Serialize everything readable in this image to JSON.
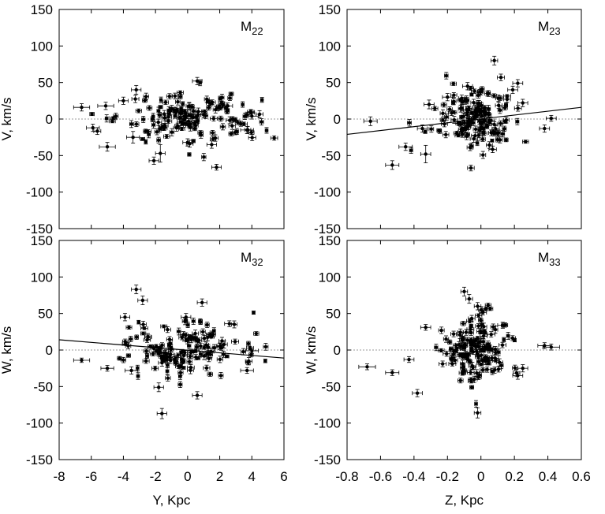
{
  "chart_data": [
    {
      "type": "scatter",
      "panel_label": "M",
      "panel_label_sub": "22",
      "xlabel": "",
      "ylabel": "V, km/s",
      "xlim": [
        -8,
        6
      ],
      "ylim": [
        -150,
        150
      ],
      "xticks": [],
      "yticks": [
        "150",
        "100",
        "50",
        "0",
        "-50",
        "-100",
        "-150"
      ],
      "zero_line": true,
      "fit_line": null,
      "featured_points": [
        {
          "x": -6.6,
          "y": 16,
          "xerr": 0.5,
          "yerr": 5
        },
        {
          "x": -5.1,
          "y": 18,
          "xerr": 0.5,
          "yerr": 5
        },
        {
          "x": -5.0,
          "y": -38,
          "xerr": 0.5,
          "yerr": 6
        },
        {
          "x": -5.9,
          "y": -12,
          "xerr": 0.4,
          "yerr": 5
        },
        {
          "x": -3.4,
          "y": -25,
          "xerr": 0.4,
          "yerr": 8
        },
        {
          "x": -3.2,
          "y": 40,
          "xerr": 0.3,
          "yerr": 6
        },
        {
          "x": -2.1,
          "y": -57,
          "xerr": 0.3,
          "yerr": 5
        },
        {
          "x": -1.7,
          "y": -47,
          "xerr": 0.3,
          "yerr": 12
        },
        {
          "x": 0.6,
          "y": 52,
          "xerr": 0.3,
          "yerr": 5
        },
        {
          "x": 1.8,
          "y": -66,
          "xerr": 0.3,
          "yerr": 4
        },
        {
          "x": 4.0,
          "y": 4,
          "xerr": 0.4,
          "yerr": 4
        },
        {
          "x": 3.7,
          "y": -15,
          "xerr": 0.4,
          "yerr": 5
        },
        {
          "x": 2.5,
          "y": 18,
          "xerr": 0.3,
          "yerr": 4
        },
        {
          "x": 1.5,
          "y": -35,
          "xerr": 0.3,
          "yerr": 5
        },
        {
          "x": 0.0,
          "y": -32,
          "xerr": 0.3,
          "yerr": 5
        },
        {
          "x": -4.0,
          "y": 25,
          "xerr": 0.3,
          "yerr": 5
        }
      ],
      "cluster": {
        "count": 150,
        "x_center": 0,
        "x_spread": 2.2,
        "y_center": 3,
        "y_spread": 18
      }
    },
    {
      "type": "scatter",
      "panel_label": "M",
      "panel_label_sub": "23",
      "xlabel": "",
      "ylabel": "V, km/s",
      "xlim": [
        -0.8,
        0.6
      ],
      "ylim": [
        -150,
        150
      ],
      "xticks": [],
      "yticks": [
        "150",
        "100",
        "50",
        "0",
        "-50",
        "-100",
        "-150"
      ],
      "zero_line": true,
      "fit_line": {
        "x": [
          -0.8,
          0.6
        ],
        "y": [
          -21,
          16
        ]
      },
      "featured_points": [
        {
          "x": -0.66,
          "y": -3,
          "xerr": 0.04,
          "yerr": 6
        },
        {
          "x": -0.53,
          "y": -63,
          "xerr": 0.04,
          "yerr": 6
        },
        {
          "x": -0.45,
          "y": -38,
          "xerr": 0.04,
          "yerr": 5
        },
        {
          "x": -0.35,
          "y": -13,
          "xerr": 0.03,
          "yerr": 5
        },
        {
          "x": -0.33,
          "y": -48,
          "xerr": 0.03,
          "yerr": 12
        },
        {
          "x": -0.31,
          "y": 20,
          "xerr": 0.03,
          "yerr": 6
        },
        {
          "x": -0.08,
          "y": 45,
          "xerr": 0.03,
          "yerr": 5
        },
        {
          "x": -0.06,
          "y": -67,
          "xerr": 0.02,
          "yerr": 4
        },
        {
          "x": 0.08,
          "y": 80,
          "xerr": 0.02,
          "yerr": 6
        },
        {
          "x": 0.22,
          "y": 49,
          "xerr": 0.03,
          "yerr": 5
        },
        {
          "x": 0.25,
          "y": 22,
          "xerr": 0.03,
          "yerr": 5
        },
        {
          "x": 0.38,
          "y": -13,
          "xerr": 0.03,
          "yerr": 5
        },
        {
          "x": 0.42,
          "y": 1,
          "xerr": 0.03,
          "yerr": 4
        },
        {
          "x": 0.19,
          "y": 40,
          "xerr": 0.03,
          "yerr": 5
        },
        {
          "x": -0.2,
          "y": 30,
          "xerr": 0.03,
          "yerr": 5
        }
      ],
      "cluster": {
        "count": 150,
        "x_center": -0.03,
        "x_spread": 0.12,
        "y_center": 3,
        "y_spread": 20
      }
    },
    {
      "type": "scatter",
      "panel_label": "M",
      "panel_label_sub": "32",
      "xlabel": "Y, Kpc",
      "ylabel": "W, km/s",
      "xlim": [
        -8,
        6
      ],
      "ylim": [
        -150,
        150
      ],
      "xticks": [
        "-8",
        "-6",
        "-4",
        "-2",
        "0",
        "2",
        "4",
        "6"
      ],
      "yticks": [
        "150",
        "100",
        "50",
        "0",
        "-50",
        "-100",
        "-150"
      ],
      "zero_line": true,
      "fit_line": {
        "x": [
          -8,
          6
        ],
        "y": [
          14,
          -11
        ]
      },
      "featured_points": [
        {
          "x": -6.6,
          "y": -14,
          "xerr": 0.5,
          "yerr": 3
        },
        {
          "x": -5.0,
          "y": -25,
          "xerr": 0.4,
          "yerr": 4
        },
        {
          "x": -3.2,
          "y": 83,
          "xerr": 0.3,
          "yerr": 6
        },
        {
          "x": -2.8,
          "y": 68,
          "xerr": 0.3,
          "yerr": 6
        },
        {
          "x": -3.9,
          "y": 45,
          "xerr": 0.3,
          "yerr": 5
        },
        {
          "x": -1.8,
          "y": -51,
          "xerr": 0.3,
          "yerr": 6
        },
        {
          "x": -1.6,
          "y": -87,
          "xerr": 0.3,
          "yerr": 7
        },
        {
          "x": 0.9,
          "y": 65,
          "xerr": 0.3,
          "yerr": 5
        },
        {
          "x": 0.6,
          "y": -62,
          "xerr": 0.3,
          "yerr": 5
        },
        {
          "x": 2.6,
          "y": 36,
          "xerr": 0.3,
          "yerr": 4
        },
        {
          "x": 4.0,
          "y": -1,
          "xerr": 0.4,
          "yerr": 4
        },
        {
          "x": 3.7,
          "y": -28,
          "xerr": 0.4,
          "yerr": 4
        },
        {
          "x": -3.5,
          "y": -28,
          "xerr": 0.4,
          "yerr": 5
        },
        {
          "x": -0.1,
          "y": 45,
          "xerr": 0.3,
          "yerr": 5
        }
      ],
      "cluster": {
        "count": 150,
        "x_center": 0,
        "x_spread": 2.2,
        "y_center": 0,
        "y_spread": 20
      }
    },
    {
      "type": "scatter",
      "panel_label": "M",
      "panel_label_sub": "33",
      "xlabel": "Z, Kpc",
      "ylabel": "W, km/s",
      "xlim": [
        -0.8,
        0.6
      ],
      "ylim": [
        -150,
        150
      ],
      "xticks": [
        "-0.8",
        "-0.6",
        "-0.4",
        "-0.2",
        "0",
        "0.2",
        "0.4",
        "0.6"
      ],
      "yticks": [
        "150",
        "100",
        "50",
        "0",
        "-50",
        "-100",
        "-150"
      ],
      "zero_line": true,
      "fit_line": null,
      "featured_points": [
        {
          "x": -0.68,
          "y": -23,
          "xerr": 0.05,
          "yerr": 4
        },
        {
          "x": -0.53,
          "y": -31,
          "xerr": 0.04,
          "yerr": 4
        },
        {
          "x": -0.38,
          "y": -59,
          "xerr": 0.03,
          "yerr": 5
        },
        {
          "x": -0.43,
          "y": -13,
          "xerr": 0.03,
          "yerr": 4
        },
        {
          "x": -0.33,
          "y": 31,
          "xerr": 0.03,
          "yerr": 4
        },
        {
          "x": -0.02,
          "y": -86,
          "xerr": 0.02,
          "yerr": 7
        },
        {
          "x": -0.1,
          "y": 80,
          "xerr": 0.02,
          "yerr": 6
        },
        {
          "x": -0.07,
          "y": 70,
          "xerr": 0.02,
          "yerr": 6
        },
        {
          "x": 0.42,
          "y": 4,
          "xerr": 0.05,
          "yerr": 4
        },
        {
          "x": 0.38,
          "y": 6,
          "xerr": 0.04,
          "yerr": 4
        },
        {
          "x": 0.25,
          "y": -25,
          "xerr": 0.03,
          "yerr": 5
        },
        {
          "x": 0.22,
          "y": -35,
          "xerr": 0.03,
          "yerr": 5
        },
        {
          "x": 0.13,
          "y": 34,
          "xerr": 0.03,
          "yerr": 4
        },
        {
          "x": -0.02,
          "y": 60,
          "xerr": 0.02,
          "yerr": 5
        }
      ],
      "cluster": {
        "count": 150,
        "x_center": -0.04,
        "x_spread": 0.1,
        "y_center": 0,
        "y_spread": 22
      }
    }
  ]
}
